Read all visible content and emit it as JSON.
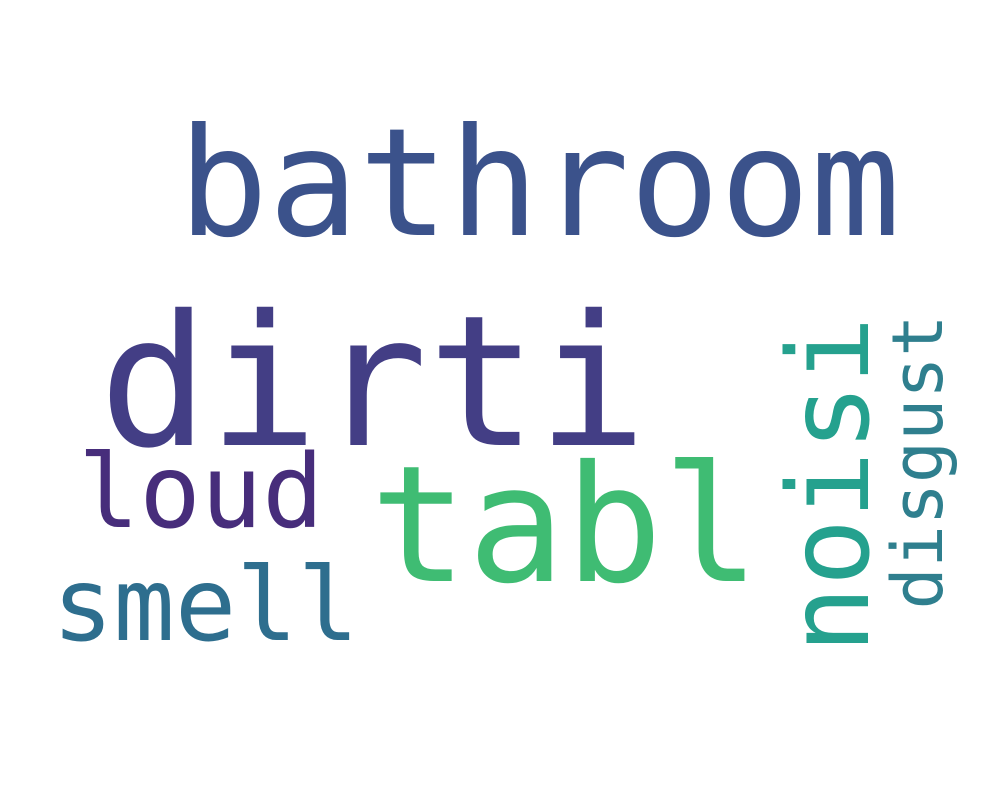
{
  "words": [
    {
      "text": "bathroom",
      "color": "#3b528b",
      "orientation": "horizontal"
    },
    {
      "text": "dirti",
      "color": "#433e85",
      "orientation": "horizontal"
    },
    {
      "text": "tabl",
      "color": "#3fbc73",
      "orientation": "horizontal"
    },
    {
      "text": "noisi",
      "color": "#25a18e",
      "orientation": "vertical"
    },
    {
      "text": "disgust",
      "color": "#2f7f8e",
      "orientation": "vertical"
    },
    {
      "text": "loud",
      "color": "#472d7b",
      "orientation": "horizontal"
    },
    {
      "text": "smell",
      "color": "#2e6e8e",
      "orientation": "horizontal"
    }
  ]
}
